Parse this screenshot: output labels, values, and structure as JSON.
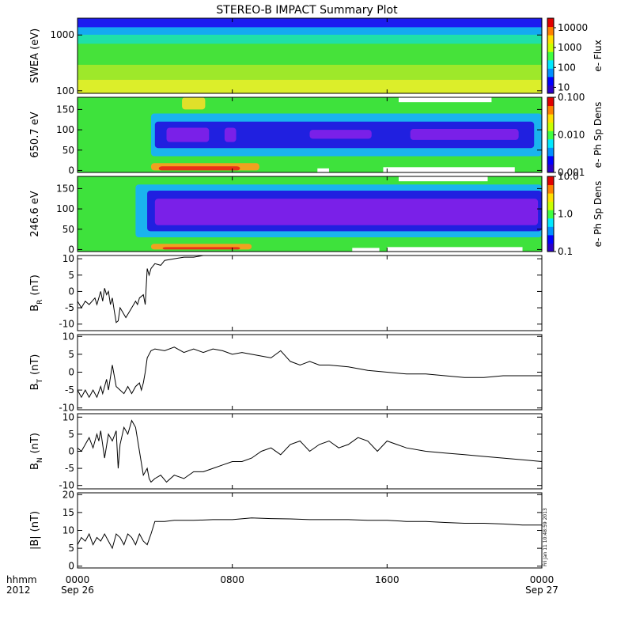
{
  "title": "STEREO-B IMPACT Summary Plot",
  "time_axis": {
    "row1_prefix": "hhmm",
    "row2_prefix": "2012",
    "ticks": [
      {
        "t": 0,
        "top": "0000",
        "bottom": "Sep 26"
      },
      {
        "t": 8,
        "top": "0800",
        "bottom": ""
      },
      {
        "t": 16,
        "top": "1600",
        "bottom": ""
      },
      {
        "t": 24,
        "top": "0000",
        "bottom": "Sep 27"
      }
    ]
  },
  "stamp": "Fri Jan 11 10:48:59 2013",
  "chart_data": [
    {
      "type": "heatmap",
      "ylabel": "SWEA (eV)",
      "y_scale": "log",
      "ylim": [
        90,
        2000
      ],
      "yticks": [
        {
          "v": 1000,
          "label": "1000"
        },
        {
          "v": 100,
          "label": "100"
        }
      ],
      "colorbar": {
        "label": "e- Flux",
        "scale": "log",
        "range": [
          5,
          30000
        ],
        "ticks": [
          {
            "v": 10000,
            "label": "10000"
          },
          {
            "v": 1000,
            "label": "1000"
          },
          {
            "v": 100,
            "label": "100"
          },
          {
            "v": 10,
            "label": "10"
          }
        ]
      },
      "layers": [
        {
          "y0": 0.0,
          "y1": 0.12,
          "color": "#1c1cf0"
        },
        {
          "y0": 0.12,
          "y1": 0.22,
          "color": "#14aaf0"
        },
        {
          "y0": 0.22,
          "y1": 0.34,
          "color": "#1fe0a8"
        },
        {
          "y0": 0.34,
          "y1": 0.62,
          "color": "#46e23a"
        },
        {
          "y0": 0.62,
          "y1": 0.82,
          "color": "#9ee82a"
        },
        {
          "y0": 0.82,
          "y1": 1.0,
          "color": "#dcee2a"
        }
      ]
    },
    {
      "type": "heatmap",
      "ylabel": "650.7 eV",
      "ylim": [
        -5,
        180
      ],
      "yticks": [
        {
          "v": 150,
          "label": "150"
        },
        {
          "v": 100,
          "label": "100"
        },
        {
          "v": 50,
          "label": "50"
        },
        {
          "v": 0,
          "label": "0"
        }
      ],
      "colorbar": {
        "label": "e- Ph Sp Dens",
        "scale": "log",
        "range": [
          0.001,
          0.1
        ],
        "ticks": [
          {
            "v": 0.1,
            "label": "0.100"
          },
          {
            "v": 0.01,
            "label": "0.010"
          },
          {
            "v": 0.001,
            "label": "0.001"
          }
        ]
      },
      "background": "#3ee23c",
      "bands": [
        {
          "t0": 3.8,
          "t1": 24,
          "p0": 35,
          "p1": 140,
          "color": "#1ab4ee"
        },
        {
          "t0": 4.0,
          "t1": 23.6,
          "p0": 55,
          "p1": 120,
          "color": "#2020e0"
        },
        {
          "t0": 4.6,
          "t1": 6.8,
          "p0": 70,
          "p1": 105,
          "color": "#7a20e8"
        },
        {
          "t0": 7.6,
          "t1": 8.2,
          "p0": 70,
          "p1": 105,
          "color": "#7a20e8"
        },
        {
          "t0": 12.0,
          "t1": 15.2,
          "p0": 78,
          "p1": 100,
          "color": "#7a20e8"
        },
        {
          "t0": 17.2,
          "t1": 22.8,
          "p0": 75,
          "p1": 102,
          "color": "#7a20e8"
        },
        {
          "t0": 3.8,
          "t1": 9.4,
          "p0": 0,
          "p1": 18,
          "color": "#f0a020"
        },
        {
          "t0": 4.2,
          "t1": 8.4,
          "p0": 0,
          "p1": 10,
          "color": "#e83018"
        },
        {
          "t0": 5.4,
          "t1": 6.6,
          "p0": 150,
          "p1": 180,
          "color": "#e0e02a"
        }
      ],
      "gaps": [
        {
          "t0": 16.6,
          "t1": 21.4,
          "p0": 168,
          "p1": 180
        },
        {
          "t0": 15.8,
          "t1": 22.6,
          "p0": -5,
          "p1": 8
        },
        {
          "t0": 12.4,
          "t1": 13.0,
          "p0": -5,
          "p1": 5
        }
      ]
    },
    {
      "type": "heatmap",
      "ylabel": "246.6 eV",
      "ylim": [
        -5,
        180
      ],
      "yticks": [
        {
          "v": 150,
          "label": "150"
        },
        {
          "v": 100,
          "label": "100"
        },
        {
          "v": 50,
          "label": "50"
        },
        {
          "v": 0,
          "label": "0"
        }
      ],
      "colorbar": {
        "label": "e- Ph Sp Dens",
        "scale": "log",
        "range": [
          0.1,
          10
        ],
        "ticks": [
          {
            "v": 10,
            "label": "10.0"
          },
          {
            "v": 1,
            "label": "1.0"
          },
          {
            "v": 0.1,
            "label": "0.1"
          }
        ]
      },
      "background": "#3ee23c",
      "bands": [
        {
          "t0": 3.0,
          "t1": 24,
          "p0": 30,
          "p1": 160,
          "color": "#1ab4ee"
        },
        {
          "t0": 3.6,
          "t1": 24,
          "p0": 45,
          "p1": 145,
          "color": "#2020e0"
        },
        {
          "t0": 4.0,
          "t1": 23.8,
          "p0": 60,
          "p1": 125,
          "color": "#7a20e8"
        },
        {
          "t0": 3.8,
          "t1": 9.0,
          "p0": 0,
          "p1": 14,
          "color": "#f0a020"
        },
        {
          "t0": 4.4,
          "t1": 8.4,
          "p0": 0,
          "p1": 6,
          "color": "#e83018"
        }
      ],
      "gaps": [
        {
          "t0": 16.6,
          "t1": 21.2,
          "p0": 168,
          "p1": 180
        },
        {
          "t0": 16.0,
          "t1": 23.0,
          "p0": -5,
          "p1": 6
        },
        {
          "t0": 14.2,
          "t1": 15.6,
          "p0": -5,
          "p1": 4
        }
      ]
    },
    {
      "type": "line",
      "ylabel": "B",
      "ysub": "R",
      "yunit": "(nT)",
      "ylim": [
        -12,
        11
      ],
      "yticks": [
        {
          "v": 10,
          "label": "10"
        },
        {
          "v": 5,
          "label": "5"
        },
        {
          "v": 0,
          "label": "0"
        },
        {
          "v": -5,
          "label": "-5"
        },
        {
          "v": -10,
          "label": "-10"
        }
      ],
      "x": [
        0,
        0.2,
        0.4,
        0.6,
        0.9,
        1.0,
        1.2,
        1.3,
        1.4,
        1.5,
        1.6,
        1.7,
        1.8,
        1.9,
        2.0,
        2.1,
        2.2,
        2.3,
        2.5,
        2.8,
        3.0,
        3.1,
        3.2,
        3.4,
        3.5,
        3.6,
        3.7,
        3.8,
        4.0,
        4.3,
        4.5,
        5.0,
        5.5,
        6.0,
        6.5,
        6.7
      ],
      "y": [
        -3,
        -5,
        -3,
        -4,
        -2,
        -4,
        0,
        -3,
        1,
        -1,
        0,
        -4,
        -2,
        -6,
        -9.5,
        -9,
        -5,
        -6,
        -8,
        -5,
        -3,
        -4,
        -2,
        -1,
        -4,
        7,
        5,
        7,
        8.5,
        8,
        9.5,
        10,
        10.5,
        10.5,
        11,
        11
      ]
    },
    {
      "type": "line",
      "ylabel": "B",
      "ysub": "T",
      "yunit": "(nT)",
      "ylim": [
        -10.5,
        10.5
      ],
      "yticks": [
        {
          "v": 10,
          "label": "10"
        },
        {
          "v": 5,
          "label": "5"
        },
        {
          "v": 0,
          "label": "0"
        },
        {
          "v": -5,
          "label": "-5"
        },
        {
          "v": -10,
          "label": "-10"
        }
      ],
      "x": [
        0,
        0.2,
        0.4,
        0.6,
        0.8,
        1.0,
        1.2,
        1.3,
        1.5,
        1.6,
        1.8,
        2.0,
        2.2,
        2.4,
        2.6,
        2.8,
        3.0,
        3.2,
        3.3,
        3.4,
        3.5,
        3.6,
        3.8,
        4.0,
        4.5,
        5.0,
        5.5,
        6.0,
        6.5,
        7.0,
        7.5,
        8.0,
        8.5,
        9.0,
        9.5,
        10.0,
        10.5,
        11.0,
        11.5,
        12.0,
        12.5,
        13.0,
        14.0,
        15.0,
        16.0,
        17.0,
        18.0,
        19.0,
        20.0,
        21.0,
        22.0,
        23.0,
        24.0
      ],
      "y": [
        -5,
        -7,
        -5,
        -7,
        -5,
        -7,
        -4,
        -6,
        -2,
        -5,
        2,
        -4,
        -5,
        -6,
        -4,
        -6,
        -4,
        -3,
        -5,
        -3,
        0,
        4,
        6,
        6.5,
        6,
        7,
        5.5,
        6.5,
        5.5,
        6.5,
        6,
        5,
        5.5,
        5,
        4.5,
        4,
        6,
        3,
        2,
        3,
        2,
        2,
        1.5,
        0.5,
        0,
        -0.5,
        -0.5,
        -1,
        -1.5,
        -1.5,
        -1,
        -1,
        -1
      ]
    },
    {
      "type": "line",
      "ylabel": "B",
      "ysub": "N",
      "yunit": "(nT)",
      "ylim": [
        -11,
        11
      ],
      "yticks": [
        {
          "v": 10,
          "label": "10"
        },
        {
          "v": 5,
          "label": "5"
        },
        {
          "v": 0,
          "label": "0"
        },
        {
          "v": -5,
          "label": "-5"
        },
        {
          "v": -10,
          "label": "-10"
        }
      ],
      "x": [
        0,
        0.2,
        0.4,
        0.6,
        0.8,
        1.0,
        1.1,
        1.2,
        1.4,
        1.6,
        1.8,
        2.0,
        2.1,
        2.2,
        2.4,
        2.6,
        2.8,
        3.0,
        3.2,
        3.4,
        3.6,
        3.7,
        3.8,
        4.0,
        4.3,
        4.6,
        5.0,
        5.5,
        6.0,
        6.5,
        7.0,
        7.5,
        8.0,
        8.5,
        9.0,
        9.5,
        10.0,
        10.5,
        11.0,
        11.5,
        12.0,
        12.5,
        13.0,
        13.5,
        14.0,
        14.5,
        15.0,
        15.5,
        16.0,
        16.5,
        17.0,
        18.0,
        19.0,
        20.0,
        21.0,
        22.0,
        23.0,
        24.0
      ],
      "y": [
        1,
        0,
        2,
        4,
        1,
        5,
        3,
        6,
        -2,
        5,
        3,
        6,
        -5,
        2,
        7,
        5,
        9,
        7,
        0,
        -7,
        -5,
        -8,
        -9,
        -8,
        -7,
        -9,
        -7,
        -8,
        -6,
        -6,
        -5,
        -4,
        -3,
        -3,
        -2,
        0,
        1,
        -1,
        2,
        3,
        0,
        2,
        3,
        1,
        2,
        4,
        3,
        0,
        3,
        2,
        1,
        0,
        -0.5,
        -1,
        -1.5,
        -2,
        -2.5,
        -3
      ]
    },
    {
      "type": "line",
      "ylabel": "|B|",
      "yunit": "(nT)",
      "ylim": [
        -0.5,
        20.5
      ],
      "yticks": [
        {
          "v": 20,
          "label": "20"
        },
        {
          "v": 15,
          "label": "15"
        },
        {
          "v": 10,
          "label": "10"
        },
        {
          "v": 5,
          "label": "5"
        },
        {
          "v": 0,
          "label": "0"
        }
      ],
      "x": [
        0,
        0.2,
        0.4,
        0.6,
        0.8,
        1.0,
        1.2,
        1.4,
        1.6,
        1.8,
        2.0,
        2.2,
        2.4,
        2.6,
        2.8,
        3.0,
        3.2,
        3.4,
        3.6,
        3.8,
        4.0,
        4.5,
        5.0,
        6.0,
        7.0,
        8.0,
        9.0,
        10.0,
        11.0,
        12.0,
        13.0,
        14.0,
        15.0,
        16.0,
        17.0,
        18.0,
        19.0,
        20.0,
        21.0,
        22.0,
        23.0,
        24.0
      ],
      "y": [
        6,
        8,
        7,
        9,
        6,
        8,
        7,
        9,
        7,
        5,
        9,
        8,
        6,
        9,
        8,
        6,
        9,
        7,
        6,
        9,
        12.5,
        12.5,
        12.8,
        12.8,
        13,
        13,
        13.5,
        13.3,
        13.2,
        13,
        13,
        13,
        12.8,
        12.8,
        12.5,
        12.5,
        12.2,
        12,
        12,
        11.8,
        11.5,
        11.5
      ]
    }
  ]
}
